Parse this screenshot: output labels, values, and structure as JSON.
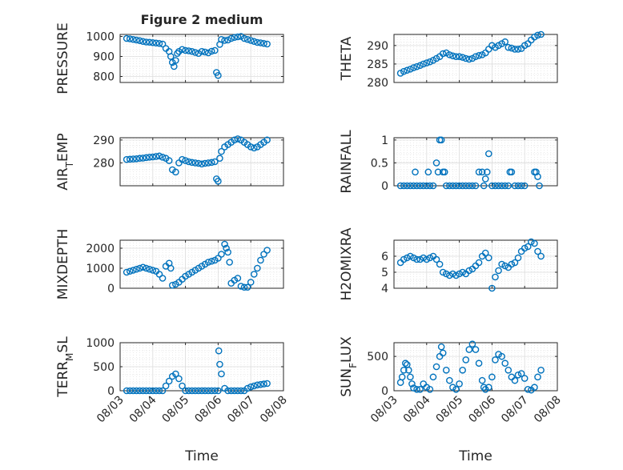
{
  "figure": {
    "title": "Figure 2 medium",
    "x_tick_labels": [
      "08/03",
      "08/04",
      "08/05",
      "08/06",
      "08/07",
      "08/08"
    ],
    "xlabel": "Time"
  },
  "style": {
    "marker_color": "#0072BD",
    "axis_color": "#262626",
    "grid_color": "#dcdcdc",
    "background": "#ffffff"
  },
  "chart_data": [
    {
      "type": "scatter",
      "ylabel": "PRESSURE",
      "ylim": [
        770,
        1010
      ],
      "yticks": [
        800,
        900,
        1000
      ],
      "xlim": [
        0,
        5
      ],
      "x": [
        0.2,
        0.3,
        0.4,
        0.5,
        0.6,
        0.7,
        0.8,
        0.9,
        1.0,
        1.1,
        1.2,
        1.3,
        1.4,
        1.5,
        1.55,
        1.6,
        1.65,
        1.7,
        1.75,
        1.8,
        1.9,
        2.0,
        2.1,
        2.2,
        2.3,
        2.4,
        2.5,
        2.6,
        2.7,
        2.8,
        2.9,
        2.95,
        3.0,
        3.05,
        3.1,
        3.2,
        3.3,
        3.4,
        3.5,
        3.6,
        3.7,
        3.8,
        3.9,
        4.0,
        4.1,
        4.2,
        4.3,
        4.4,
        4.5
      ],
      "y": [
        990,
        988,
        985,
        982,
        979,
        975,
        972,
        971,
        969,
        967,
        965,
        962,
        940,
        925,
        900,
        870,
        850,
        880,
        915,
        925,
        935,
        930,
        928,
        925,
        920,
        915,
        925,
        922,
        918,
        926,
        930,
        820,
        805,
        960,
        985,
        980,
        982,
        990,
        995,
        998,
        1000,
        990,
        985,
        980,
        975,
        970,
        968,
        965,
        962
      ]
    },
    {
      "type": "scatter",
      "ylabel": "THETA",
      "ylim": [
        280,
        293
      ],
      "yticks": [
        280,
        285,
        290
      ],
      "xlim": [
        0,
        5
      ],
      "x": [
        0.2,
        0.3,
        0.4,
        0.5,
        0.6,
        0.7,
        0.8,
        0.9,
        1.0,
        1.1,
        1.2,
        1.3,
        1.4,
        1.5,
        1.6,
        1.7,
        1.8,
        1.9,
        2.0,
        2.1,
        2.2,
        2.3,
        2.4,
        2.5,
        2.6,
        2.7,
        2.8,
        2.9,
        3.0,
        3.1,
        3.2,
        3.3,
        3.4,
        3.5,
        3.6,
        3.7,
        3.8,
        3.9,
        4.0,
        4.1,
        4.2,
        4.3,
        4.4,
        4.5
      ],
      "y": [
        282.5,
        283,
        283.3,
        283.6,
        284,
        284.3,
        284.6,
        285,
        285.3,
        285.6,
        286,
        286.5,
        287,
        287.8,
        288,
        287.5,
        287.2,
        287,
        287,
        286.8,
        286.5,
        286.3,
        286.5,
        287,
        287.3,
        287.5,
        288,
        289,
        290,
        289.5,
        290,
        290.5,
        291,
        289.5,
        289.3,
        289,
        289,
        289.2,
        290,
        290.5,
        291.5,
        292.3,
        292.8,
        293
      ]
    },
    {
      "type": "scatter",
      "ylabel": "AIR_TEMP",
      "ylim": [
        270,
        291
      ],
      "yticks": [
        280,
        290
      ],
      "xlim": [
        0,
        5
      ],
      "x": [
        0.2,
        0.3,
        0.4,
        0.5,
        0.6,
        0.7,
        0.8,
        0.9,
        1.0,
        1.1,
        1.2,
        1.3,
        1.4,
        1.5,
        1.6,
        1.7,
        1.8,
        1.9,
        2.0,
        2.1,
        2.2,
        2.3,
        2.4,
        2.5,
        2.6,
        2.7,
        2.8,
        2.9,
        2.95,
        3.0,
        3.05,
        3.1,
        3.2,
        3.3,
        3.4,
        3.5,
        3.6,
        3.7,
        3.8,
        3.9,
        4.0,
        4.1,
        4.2,
        4.3,
        4.4,
        4.5
      ],
      "y": [
        281.5,
        281.6,
        281.7,
        281.8,
        282,
        282.1,
        282.3,
        282.5,
        282.6,
        282.8,
        283,
        282.5,
        282,
        281,
        277,
        276,
        280,
        281.5,
        281,
        280.5,
        280.2,
        280,
        279.8,
        279.5,
        279.8,
        280,
        280.2,
        280.5,
        273,
        272,
        282,
        285,
        287,
        288,
        289,
        290,
        290.5,
        290,
        289,
        288,
        287,
        286.5,
        287,
        288,
        289,
        290
      ]
    },
    {
      "type": "scatter",
      "ylabel": "RAINFALL",
      "ylim": [
        0,
        1.05
      ],
      "yticks": [
        0,
        0.5,
        1
      ],
      "ytick_labels": [
        "0",
        "0.5",
        "1"
      ],
      "xlim": [
        0,
        5
      ],
      "x": [
        0.2,
        0.3,
        0.4,
        0.5,
        0.6,
        0.65,
        0.7,
        0.8,
        0.9,
        1.0,
        1.05,
        1.1,
        1.2,
        1.3,
        1.35,
        1.4,
        1.45,
        1.5,
        1.55,
        1.6,
        1.7,
        1.8,
        1.9,
        2.0,
        2.1,
        2.2,
        2.3,
        2.4,
        2.5,
        2.6,
        2.7,
        2.75,
        2.8,
        2.85,
        2.9,
        3.0,
        3.1,
        3.2,
        3.3,
        3.4,
        3.5,
        3.55,
        3.6,
        3.7,
        3.8,
        3.9,
        4.0,
        4.3,
        4.35,
        4.4,
        4.45
      ],
      "y": [
        0,
        0,
        0,
        0,
        0,
        0.3,
        0,
        0,
        0,
        0,
        0.3,
        0,
        0,
        0.5,
        0.3,
        1,
        1,
        0.3,
        0.3,
        0,
        0,
        0,
        0,
        0,
        0,
        0,
        0,
        0,
        0,
        0.3,
        0.3,
        0,
        0.15,
        0.3,
        0.7,
        0,
        0,
        0,
        0,
        0,
        0,
        0.3,
        0.3,
        0,
        0,
        0,
        0,
        0.3,
        0.3,
        0.2,
        0
      ]
    },
    {
      "type": "scatter",
      "ylabel": "MIXDEPTH",
      "ylim": [
        0,
        2400
      ],
      "yticks": [
        0,
        1000,
        2000
      ],
      "xlim": [
        0,
        5
      ],
      "x": [
        0.2,
        0.3,
        0.4,
        0.5,
        0.6,
        0.7,
        0.8,
        0.9,
        1.0,
        1.1,
        1.2,
        1.3,
        1.4,
        1.5,
        1.55,
        1.6,
        1.7,
        1.8,
        1.9,
        2.0,
        2.1,
        2.2,
        2.3,
        2.4,
        2.5,
        2.6,
        2.7,
        2.8,
        2.9,
        3.0,
        3.1,
        3.2,
        3.25,
        3.3,
        3.35,
        3.4,
        3.5,
        3.6,
        3.7,
        3.8,
        3.9,
        4.0,
        4.1,
        4.2,
        4.3,
        4.4,
        4.5
      ],
      "y": [
        800,
        850,
        900,
        950,
        1000,
        1050,
        1000,
        950,
        900,
        850,
        700,
        500,
        1100,
        1250,
        1000,
        150,
        200,
        300,
        450,
        600,
        700,
        800,
        900,
        1000,
        1100,
        1200,
        1300,
        1350,
        1400,
        1500,
        1700,
        2200,
        2000,
        1800,
        1300,
        250,
        400,
        500,
        100,
        50,
        50,
        300,
        700,
        1000,
        1400,
        1700,
        1900
      ]
    },
    {
      "type": "scatter",
      "ylabel": "H2OMIXRA",
      "ylim": [
        4,
        7
      ],
      "yticks": [
        4,
        5,
        6
      ],
      "xlim": [
        0,
        5
      ],
      "x": [
        0.2,
        0.3,
        0.4,
        0.5,
        0.6,
        0.7,
        0.8,
        0.9,
        1.0,
        1.1,
        1.2,
        1.3,
        1.4,
        1.5,
        1.6,
        1.7,
        1.8,
        1.9,
        2.0,
        2.1,
        2.2,
        2.3,
        2.4,
        2.5,
        2.6,
        2.7,
        2.8,
        2.9,
        3.0,
        3.1,
        3.2,
        3.3,
        3.4,
        3.5,
        3.6,
        3.7,
        3.8,
        3.9,
        4.0,
        4.1,
        4.2,
        4.3,
        4.4,
        4.5
      ],
      "y": [
        5.6,
        5.8,
        5.9,
        6.0,
        5.9,
        5.8,
        5.8,
        5.9,
        5.8,
        5.9,
        6.0,
        5.8,
        5.5,
        5.0,
        4.9,
        4.8,
        4.9,
        4.8,
        4.9,
        5.0,
        4.9,
        5.1,
        5.2,
        5.4,
        5.6,
        6.0,
        6.2,
        5.9,
        4.0,
        4.7,
        5.1,
        5.5,
        5.4,
        5.3,
        5.5,
        5.6,
        5.9,
        6.3,
        6.5,
        6.6,
        6.9,
        6.8,
        6.3,
        6.0
      ]
    },
    {
      "type": "scatter",
      "ylabel": "TERR_MSL",
      "ylim": [
        0,
        1000
      ],
      "yticks": [
        0,
        500,
        1000
      ],
      "xlim": [
        0,
        5
      ],
      "x": [
        0.2,
        0.3,
        0.4,
        0.5,
        0.6,
        0.7,
        0.8,
        0.9,
        1.0,
        1.1,
        1.2,
        1.3,
        1.4,
        1.5,
        1.6,
        1.7,
        1.8,
        1.9,
        2.0,
        2.1,
        2.2,
        2.3,
        2.4,
        2.5,
        2.6,
        2.7,
        2.8,
        2.9,
        3.0,
        3.02,
        3.05,
        3.1,
        3.2,
        3.3,
        3.4,
        3.5,
        3.6,
        3.7,
        3.8,
        3.9,
        4.0,
        4.1,
        4.2,
        4.3,
        4.4,
        4.5
      ],
      "y": [
        0,
        0,
        0,
        0,
        0,
        0,
        0,
        0,
        0,
        0,
        0,
        0,
        100,
        200,
        300,
        350,
        250,
        100,
        0,
        0,
        0,
        0,
        0,
        0,
        0,
        0,
        0,
        0,
        0,
        830,
        550,
        350,
        50,
        0,
        0,
        0,
        0,
        0,
        0,
        50,
        80,
        100,
        120,
        130,
        140,
        150
      ]
    },
    {
      "type": "scatter",
      "ylabel": "SUN_FLUX",
      "ylim": [
        0,
        700
      ],
      "yticks": [
        0,
        500
      ],
      "xlim": [
        0,
        5
      ],
      "x": [
        0.2,
        0.25,
        0.3,
        0.35,
        0.4,
        0.45,
        0.5,
        0.55,
        0.6,
        0.7,
        0.8,
        0.9,
        1.0,
        1.1,
        1.2,
        1.3,
        1.4,
        1.45,
        1.5,
        1.6,
        1.7,
        1.8,
        1.9,
        2.0,
        2.1,
        2.2,
        2.3,
        2.4,
        2.5,
        2.6,
        2.7,
        2.75,
        2.8,
        2.9,
        3.0,
        3.1,
        3.2,
        3.3,
        3.4,
        3.5,
        3.6,
        3.7,
        3.8,
        3.9,
        4.0,
        4.1,
        4.2,
        4.3,
        4.4,
        4.5
      ],
      "y": [
        120,
        200,
        300,
        400,
        380,
        300,
        200,
        100,
        40,
        20,
        20,
        100,
        50,
        20,
        200,
        350,
        500,
        640,
        550,
        300,
        150,
        50,
        20,
        100,
        300,
        450,
        600,
        680,
        600,
        400,
        150,
        50,
        20,
        50,
        200,
        450,
        530,
        500,
        400,
        300,
        200,
        150,
        230,
        250,
        180,
        20,
        10,
        50,
        200,
        300
      ]
    }
  ]
}
